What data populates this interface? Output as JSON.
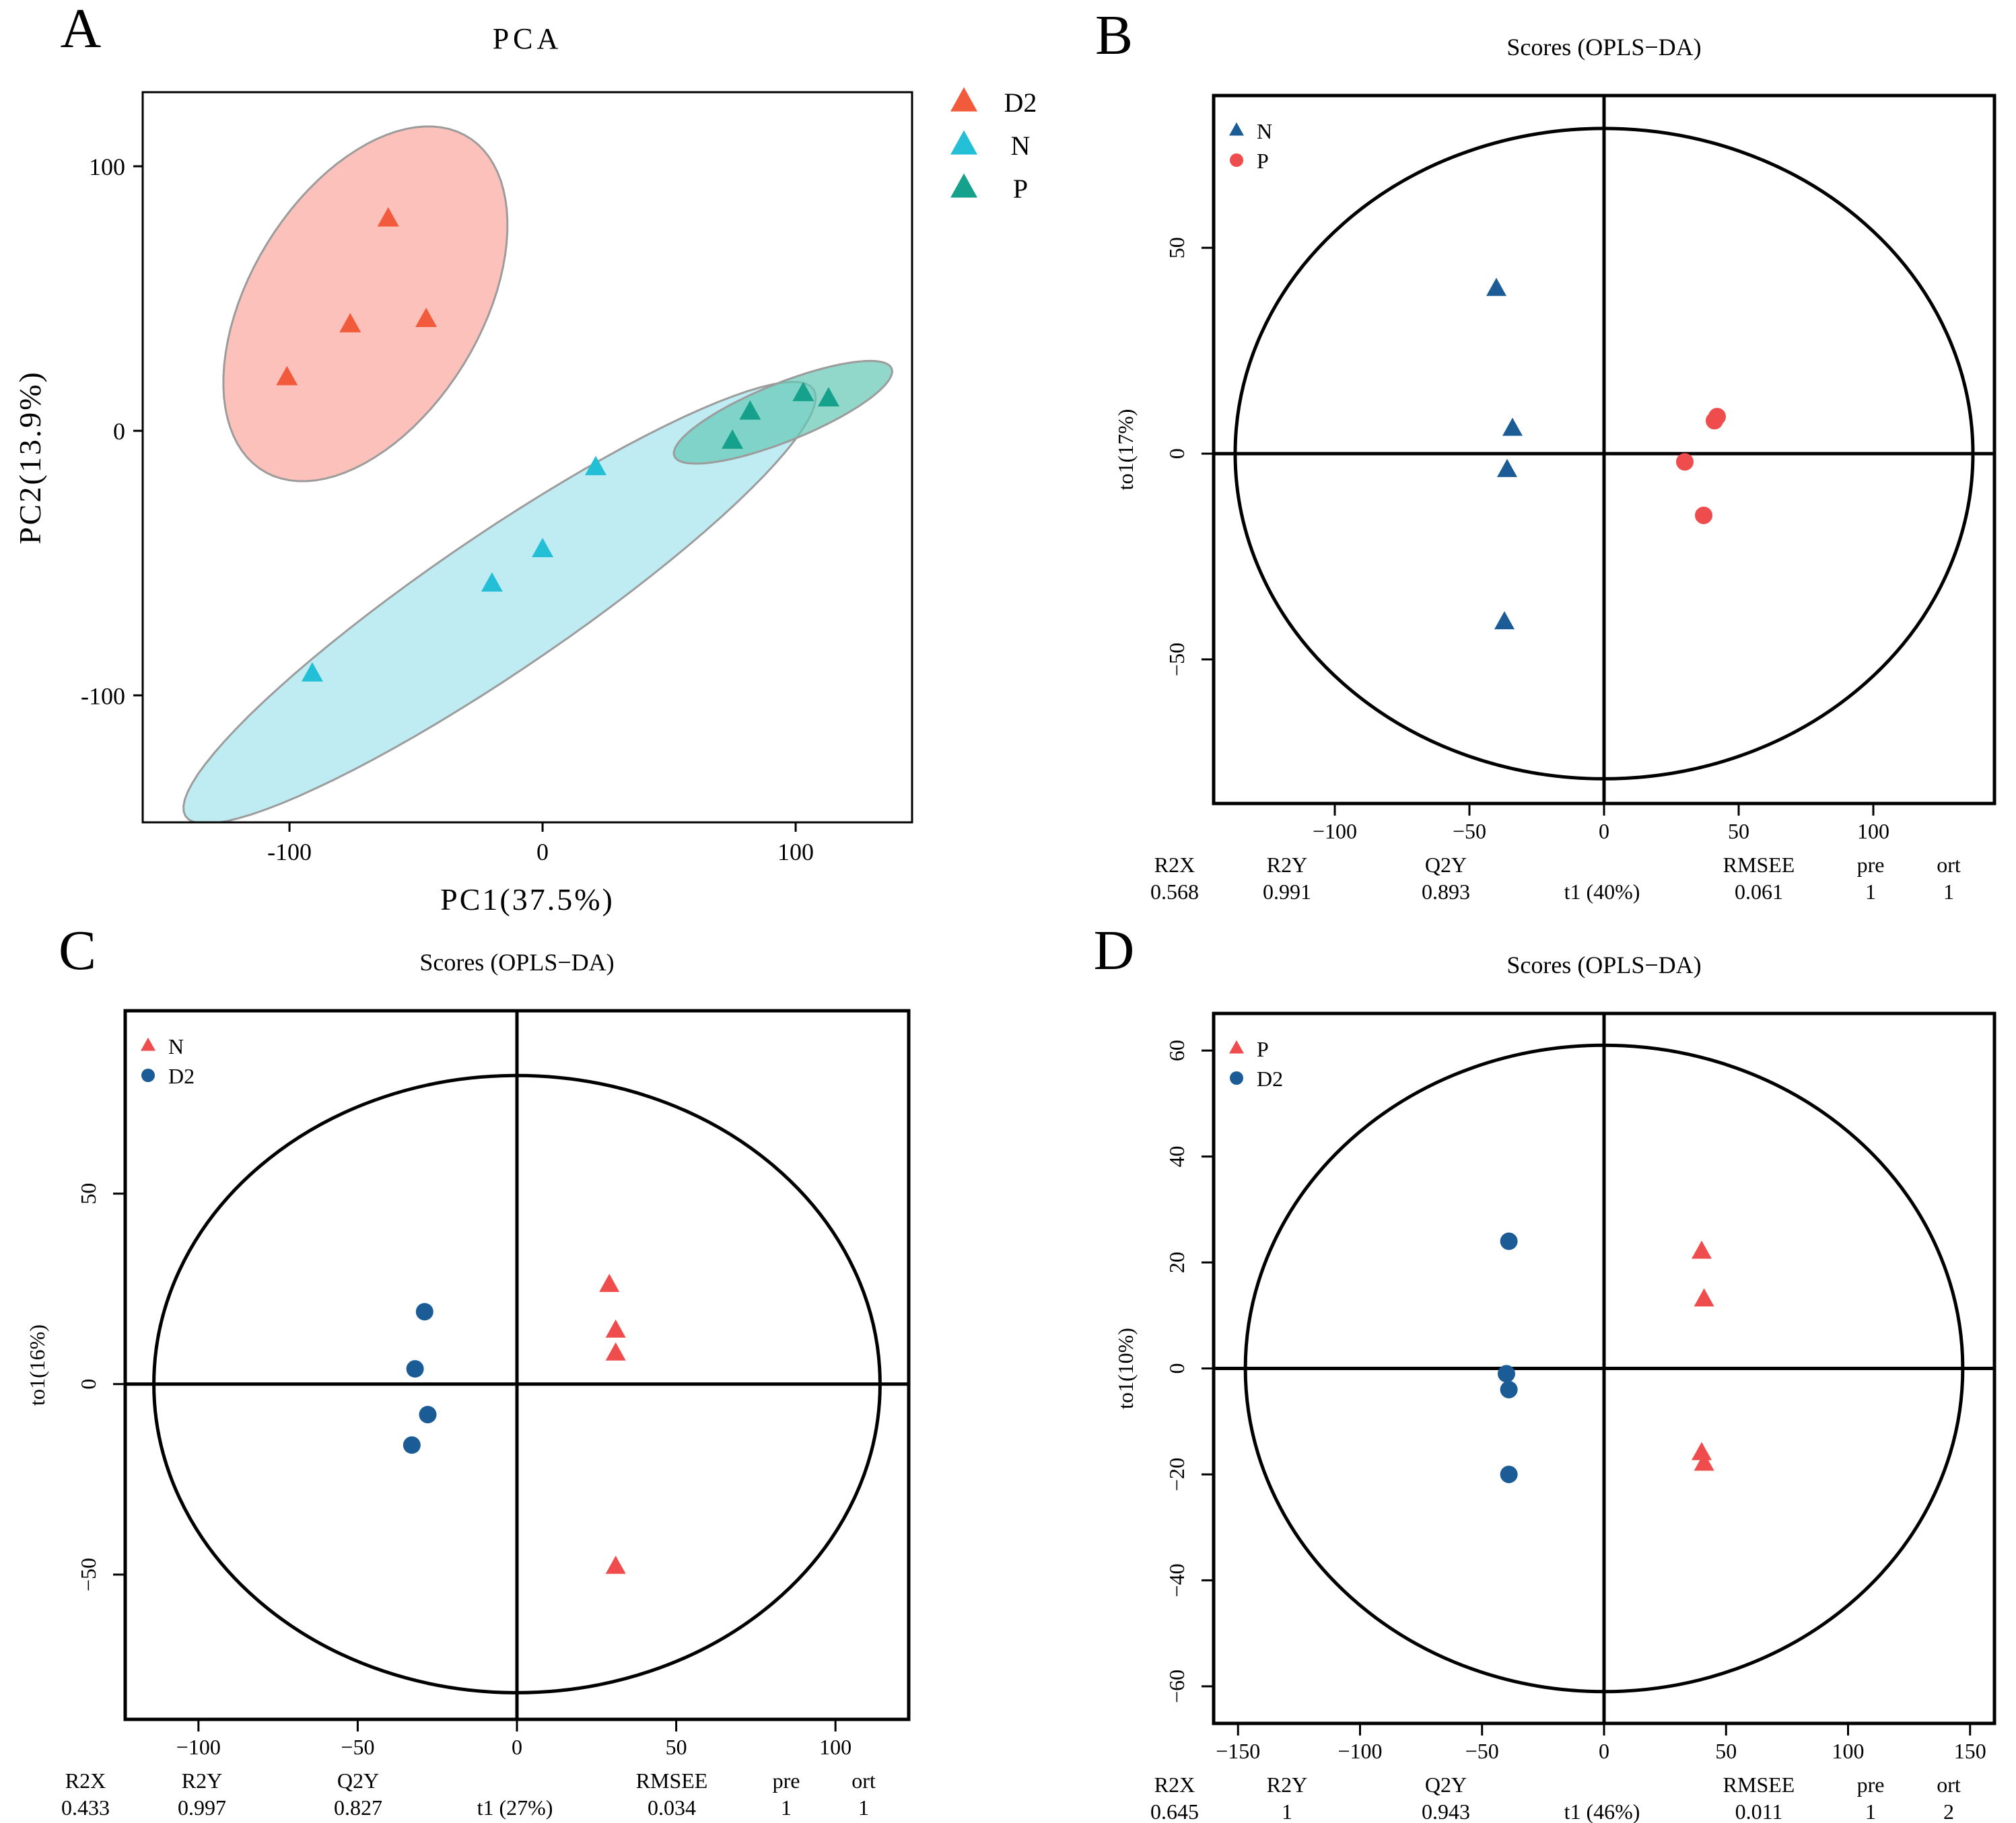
{
  "chart_data": [
    {
      "panel": "A",
      "type": "scatter",
      "title": "PCA",
      "xlabel": "PC1(37.5%)",
      "ylabel": "PC2(13.9%)",
      "xlim": [
        -158,
        146
      ],
      "ylim": [
        -148,
        128
      ],
      "xticks": [
        -100,
        0,
        100
      ],
      "yticks": [
        -100,
        0,
        100
      ],
      "xtick_labels": [
        "-100",
        "0",
        "100"
      ],
      "ytick_labels": [
        "-100",
        "0",
        "100"
      ],
      "legend": [
        "D2",
        "N",
        "P"
      ],
      "series": [
        {
          "name": "D2",
          "color": "#f25a3c",
          "marker": "triangle",
          "points": [
            [
              -61,
              80
            ],
            [
              -46,
              42
            ],
            [
              -76,
              40
            ],
            [
              -101,
              20
            ]
          ]
        },
        {
          "name": "N",
          "color": "#22bfd6",
          "marker": "triangle",
          "points": [
            [
              21,
              -14
            ],
            [
              0,
              -45
            ],
            [
              -20,
              -58
            ],
            [
              -91,
              -92
            ]
          ]
        },
        {
          "name": "P",
          "color": "#16a18c",
          "marker": "triangle",
          "points": [
            [
              82,
              7
            ],
            [
              103,
              14
            ],
            [
              113,
              12
            ],
            [
              75,
              -4
            ]
          ]
        }
      ],
      "ellipses": [
        {
          "group": "D2",
          "fill": "#f9a99f",
          "center": [
            -70,
            48
          ],
          "rx": 75,
          "ry": 45,
          "angle": 56
        },
        {
          "group": "N",
          "fill": "#a6e5ef",
          "center": [
            -17,
            -65
          ],
          "rx": 148,
          "ry": 26,
          "angle": 33
        },
        {
          "group": "P",
          "fill": "#66c9b7",
          "center": [
            95,
            7
          ],
          "rx": 46,
          "ry": 11,
          "angle": 21
        }
      ]
    },
    {
      "panel": "B",
      "type": "scatter",
      "title": "Scores (OPLS−DA)",
      "xlabel": "t1 (40%)",
      "ylabel": "to1(17%)",
      "xlim": [
        -145,
        145
      ],
      "ylim": [
        -85,
        87
      ],
      "xticks": [
        -100,
        -50,
        0,
        50,
        100
      ],
      "yticks": [
        -50,
        0,
        50
      ],
      "xtick_labels": [
        "−100",
        "−50",
        "0",
        "50",
        "100"
      ],
      "ytick_labels": [
        "−50",
        "0",
        "50"
      ],
      "legend": [
        "N",
        "P"
      ],
      "ellipse": {
        "rx": 137,
        "ry": 79
      },
      "series": [
        {
          "name": "N",
          "color": "#1b5c97",
          "marker": "triangle",
          "points": [
            [
              -40,
              40
            ],
            [
              -34,
              6
            ],
            [
              -36,
              -4
            ],
            [
              -37,
              -41
            ]
          ]
        },
        {
          "name": "P",
          "color": "#ef4d4d",
          "marker": "circle",
          "points": [
            [
              42,
              9
            ],
            [
              41,
              8
            ],
            [
              30,
              -2
            ],
            [
              37,
              -15
            ]
          ]
        }
      ],
      "stats": {
        "headers": [
          "R2X",
          "R2Y",
          "Q2Y",
          "RMSEE",
          "pre",
          "ort"
        ],
        "values": [
          "0.568",
          "0.991",
          "0.893",
          "0.061",
          "1",
          "1"
        ]
      }
    },
    {
      "panel": "C",
      "type": "scatter",
      "title": "Scores (OPLS−DA)",
      "xlabel": "t1 (27%)",
      "ylabel": "to1(16%)",
      "xlim": [
        -123,
        123
      ],
      "ylim": [
        -88,
        98
      ],
      "xticks": [
        -100,
        -50,
        0,
        50,
        100
      ],
      "yticks": [
        -50,
        0,
        50
      ],
      "xtick_labels": [
        "−100",
        "−50",
        "0",
        "50",
        "100"
      ],
      "ytick_labels": [
        "−50",
        "0",
        "50"
      ],
      "legend": [
        "N",
        "D2"
      ],
      "ellipse": {
        "rx": 114,
        "ry": 81
      },
      "series": [
        {
          "name": "N",
          "color": "#ef4d4d",
          "marker": "triangle",
          "points": [
            [
              29,
              26
            ],
            [
              31,
              14
            ],
            [
              31,
              8
            ],
            [
              31,
              -48
            ]
          ]
        },
        {
          "name": "D2",
          "color": "#1b5c97",
          "marker": "circle",
          "points": [
            [
              -29,
              19
            ],
            [
              -32,
              4
            ],
            [
              -28,
              -8
            ],
            [
              -33,
              -16
            ]
          ]
        }
      ],
      "stats": {
        "headers": [
          "R2X",
          "R2Y",
          "Q2Y",
          "RMSEE",
          "pre",
          "ort"
        ],
        "values": [
          "0.433",
          "0.997",
          "0.827",
          "0.034",
          "1",
          "1"
        ]
      }
    },
    {
      "panel": "D",
      "type": "scatter",
      "title": "Scores (OPLS−DA)",
      "xlabel": "t1 (46%)",
      "ylabel": "to1(10%)",
      "xlim": [
        -160,
        160
      ],
      "ylim": [
        -67,
        67
      ],
      "xticks": [
        -150,
        -100,
        -50,
        0,
        50,
        100,
        150
      ],
      "yticks": [
        -60,
        -40,
        -20,
        0,
        20,
        40,
        60
      ],
      "xtick_labels": [
        "−150",
        "−100",
        "−50",
        "0",
        "50",
        "100",
        "150"
      ],
      "ytick_labels": [
        "−60",
        "−40",
        "−20",
        "0",
        "20",
        "40",
        "60"
      ],
      "legend": [
        "P",
        "D2"
      ],
      "ellipse": {
        "rx": 147,
        "ry": 61
      },
      "series": [
        {
          "name": "P",
          "color": "#ef4d4d",
          "marker": "triangle",
          "points": [
            [
              40,
              22
            ],
            [
              41,
              13
            ],
            [
              40,
              -16
            ],
            [
              41,
              -18
            ]
          ]
        },
        {
          "name": "D2",
          "color": "#1b5c97",
          "marker": "circle",
          "points": [
            [
              -39,
              24
            ],
            [
              -40,
              -1
            ],
            [
              -39,
              -4
            ],
            [
              -39,
              -20
            ]
          ]
        }
      ],
      "stats": {
        "headers": [
          "R2X",
          "R2Y",
          "Q2Y",
          "RMSEE",
          "pre",
          "ort"
        ],
        "values": [
          "0.645",
          "1",
          "0.943",
          "0.011",
          "1",
          "2"
        ]
      }
    }
  ]
}
